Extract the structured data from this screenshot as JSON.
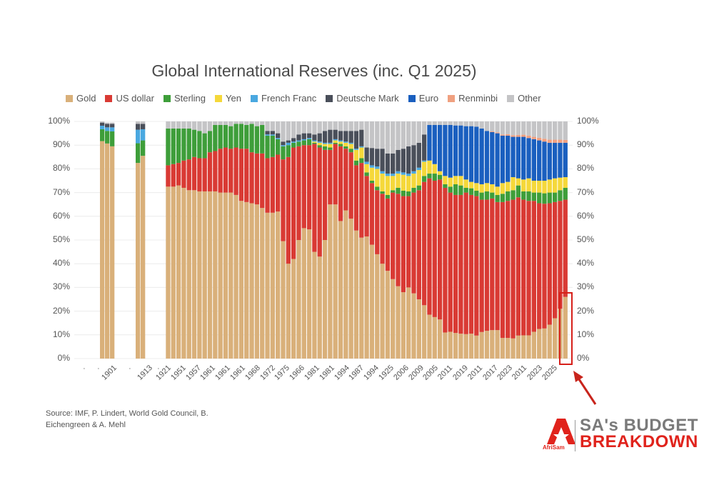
{
  "chart_data": {
    "type": "bar",
    "stacked": true,
    "normalized": true,
    "title": "Global International Reserves (inc. Q1 2025)",
    "legend_position": "top",
    "grid": true,
    "ylim": [
      0,
      100
    ],
    "y_ticks": [
      "0%",
      "10%",
      "20%",
      "30%",
      "40%",
      "50%",
      "60%",
      "70%",
      "80%",
      "90%",
      "100%"
    ],
    "x_tick_labels": [
      ".",
      ".",
      "1901",
      ".",
      "1913",
      ".",
      "1921",
      "1951",
      "1957",
      "1961",
      "1961",
      "1961",
      "1968",
      "1972",
      "1975",
      "1966",
      "1981",
      "1981",
      "1994",
      "1987",
      "1994",
      "1925",
      "2006",
      "2009",
      "2005",
      "2011",
      "2019",
      "2011",
      "2017",
      "2023",
      "2011",
      "2023",
      "2025"
    ],
    "highlight": "last bar (red box with arrow)",
    "series": [
      {
        "name": "Gold",
        "color": "#d9b07a",
        "values": [
          91.7,
          90.7,
          89.5,
          82.5,
          85.5,
          72.5,
          72.5,
          73,
          72,
          71,
          71,
          70.5,
          70.5,
          70.5,
          70.5,
          70,
          70,
          70,
          69,
          66.5,
          66,
          65.5,
          65,
          63.5,
          61.5,
          61.5,
          62,
          49.5,
          40,
          42,
          50,
          55,
          54.5,
          45,
          43,
          50,
          65,
          65,
          58,
          62.5,
          59,
          54,
          51,
          51.5,
          48,
          44,
          40,
          37,
          33.5,
          30.5,
          28,
          30,
          27.5,
          25,
          22.5,
          18.5,
          17.5,
          16.5,
          11,
          11.3,
          10.8,
          10.5,
          10.3,
          10.5,
          9.7,
          11.2,
          11.7,
          12,
          12,
          8.7,
          8.7,
          8.5,
          9.7,
          9.8,
          9.8,
          11.3,
          12.5,
          12.7,
          14.3,
          17,
          21,
          26
        ]
      },
      {
        "name": "US dollar",
        "color": "#d93a34",
        "values": [
          0,
          0,
          0,
          0,
          0,
          9,
          9.5,
          9.5,
          11.5,
          13,
          14,
          14,
          14,
          16.5,
          17,
          18.5,
          19,
          18.5,
          20,
          22,
          22.5,
          21.5,
          21.5,
          23,
          23,
          23.5,
          24,
          34.5,
          45,
          47,
          39.5,
          35,
          35.5,
          45.5,
          46,
          38,
          23,
          25.5,
          31.5,
          26,
          28,
          27.5,
          31.5,
          25.5,
          26,
          27,
          29.5,
          30.5,
          36.5,
          39,
          40.5,
          38.5,
          42.5,
          46,
          52,
          57.5,
          57.5,
          59,
          61,
          58.7,
          58.2,
          58.5,
          59.7,
          58.5,
          58.8,
          55.8,
          55.3,
          55.5,
          54,
          57.3,
          57.8,
          58.5,
          58.3,
          57.2,
          56.7,
          55.2,
          53,
          52.6,
          51.2,
          49,
          45.5,
          41
        ]
      },
      {
        "name": "Sterling",
        "color": "#3e9e3a",
        "values": [
          5,
          5.3,
          6.3,
          8.3,
          6.5,
          15.5,
          15,
          14.5,
          13.5,
          13,
          11.5,
          11.5,
          10.5,
          9,
          11,
          10,
          9.5,
          9.5,
          10,
          10.5,
          10,
          12,
          11.5,
          12,
          9.5,
          9,
          6.5,
          5.5,
          5,
          2,
          2,
          2,
          2.5,
          0.5,
          1,
          1.5,
          1,
          0.5,
          1,
          1,
          1.5,
          2,
          2,
          1.5,
          1,
          1.5,
          1,
          1.5,
          1,
          2.5,
          2.3,
          2,
          2,
          2,
          2.5,
          2,
          3,
          2,
          1.5,
          2.5,
          4.5,
          4,
          2,
          2.8,
          2.3,
          3,
          3.5,
          2.5,
          3,
          3.5,
          4,
          4,
          5,
          3.5,
          4,
          3.5,
          4.5,
          4.4,
          4.5,
          4,
          4.5,
          5
        ]
      },
      {
        "name": "Yen",
        "color": "#f5d83a",
        "values": [
          0,
          0,
          0,
          0,
          0,
          0,
          0,
          0,
          0,
          0,
          0,
          0,
          0,
          0,
          0,
          0,
          0,
          0,
          0,
          0,
          0,
          0,
          0,
          0,
          0,
          0,
          0,
          0,
          0,
          0,
          0,
          0,
          0,
          0.5,
          1,
          1,
          1.5,
          1,
          1,
          1.5,
          2,
          4.5,
          4.5,
          3.5,
          5.5,
          7.5,
          7.5,
          8,
          6,
          6,
          6.7,
          6.5,
          6,
          6.5,
          6,
          5.5,
          4,
          1.5,
          3.5,
          3.8,
          3.5,
          4,
          3.5,
          2.7,
          3.2,
          3.5,
          3.5,
          3.5,
          3.5,
          4.5,
          4,
          5.5,
          3,
          5,
          5.5,
          5,
          5,
          5.3,
          5.5,
          6,
          5.3,
          4.5
        ]
      },
      {
        "name": "French Franc",
        "color": "#4aa8e0",
        "values": [
          1.5,
          1.5,
          1.7,
          5.7,
          4.7,
          0,
          0,
          0,
          0,
          0,
          0,
          0,
          0,
          0,
          0,
          0,
          0,
          0,
          0,
          0,
          0,
          0,
          0,
          0,
          0.5,
          0.5,
          0.5,
          0.5,
          1,
          0.5,
          0.5,
          0.5,
          0.5,
          0.5,
          0.5,
          0.5,
          0.5,
          0.5,
          0.5,
          0.5,
          0.5,
          0.5,
          0.5,
          1,
          1,
          1,
          1,
          1,
          1,
          1,
          1,
          1,
          1,
          1,
          0.5,
          0,
          0,
          0,
          0,
          0,
          0,
          0,
          0,
          0,
          0,
          0,
          0,
          0,
          0,
          0,
          0,
          0,
          0,
          0,
          0,
          0,
          0,
          0,
          0,
          0,
          0,
          0
        ]
      },
      {
        "name": "Deutsche Mark",
        "color": "#4a4f5a",
        "values": [
          1.3,
          1.5,
          1.5,
          2.5,
          2.3,
          0,
          0,
          0,
          0,
          0,
          0,
          0,
          0,
          0,
          0,
          0,
          0,
          0,
          0,
          0,
          0,
          0,
          0,
          0,
          1.5,
          1.5,
          2,
          1.5,
          1,
          1.5,
          2.5,
          2.5,
          2,
          2.5,
          3.5,
          5,
          5.5,
          4,
          4,
          4.5,
          5,
          7.5,
          7,
          6,
          7.3,
          7.5,
          9.5,
          8.5,
          8.5,
          9,
          10,
          11.5,
          11,
          10.5,
          11,
          0,
          0,
          0,
          0,
          0,
          0,
          0,
          0,
          0,
          0,
          0,
          0,
          0,
          0,
          0,
          0,
          0,
          0,
          0,
          0,
          0,
          0,
          0,
          0,
          0,
          0,
          0
        ]
      },
      {
        "name": "Euro",
        "color": "#1a5fbf",
        "values": [
          0,
          0,
          0,
          0,
          0,
          0,
          0,
          0,
          0,
          0,
          0,
          0,
          0,
          0,
          0,
          0,
          0,
          0,
          0,
          0,
          0,
          0,
          0,
          0,
          0,
          0,
          0,
          0,
          0,
          0,
          0,
          0,
          0,
          0,
          0,
          0,
          0,
          0,
          0,
          0,
          0,
          0,
          0,
          0,
          0,
          0,
          0,
          0,
          0,
          0,
          0,
          0,
          0,
          0,
          0,
          15,
          16.5,
          19.5,
          21.5,
          22.2,
          21.3,
          21.3,
          22.5,
          23.5,
          23.8,
          23.5,
          22,
          22,
          22.5,
          20,
          19.5,
          17,
          17.5,
          18,
          17,
          17.5,
          17,
          16.5,
          15.5,
          15,
          14.7,
          14.5
        ]
      },
      {
        "name": "Renminbi",
        "color": "#f0a080",
        "values": [
          0,
          0,
          0,
          0,
          0,
          0,
          0,
          0,
          0,
          0,
          0,
          0,
          0,
          0,
          0,
          0,
          0,
          0,
          0,
          0,
          0,
          0,
          0,
          0,
          0,
          0,
          0,
          0,
          0,
          0,
          0,
          0,
          0,
          0,
          0,
          0,
          0,
          0,
          0,
          0,
          0,
          0,
          0,
          0,
          0,
          0,
          0,
          0,
          0,
          0,
          0,
          0,
          0,
          0,
          0,
          0,
          0,
          0,
          0,
          0,
          0,
          0,
          0,
          0,
          0,
          0,
          0,
          0.3,
          0.4,
          0.5,
          0.6,
          0.7,
          0.8,
          0.9,
          1,
          1,
          1.1,
          1.2,
          1.3,
          1.3,
          1.3,
          1.2
        ]
      },
      {
        "name": "Other",
        "color": "#c4c4c6",
        "values": [
          0.5,
          0.5,
          0.5,
          1,
          1,
          3,
          3,
          3,
          3,
          3,
          3.5,
          4,
          5,
          4,
          1.5,
          1.5,
          1.5,
          2,
          1,
          1,
          1.5,
          1,
          2,
          1.5,
          4,
          4,
          5,
          8.5,
          8,
          7,
          5.5,
          5,
          5,
          5.5,
          5,
          4,
          3.5,
          3.5,
          4,
          4,
          4,
          4,
          3.5,
          11,
          11.2,
          11.5,
          11.5,
          13.5,
          13.5,
          12,
          11.5,
          10.5,
          10,
          9,
          5.5,
          1.5,
          1.5,
          1.5,
          1.5,
          1.5,
          1.7,
          1.7,
          2,
          2,
          2.2,
          3,
          4,
          4.2,
          4.6,
          5.5,
          5.4,
          5.8,
          5.7,
          5.6,
          6,
          6.5,
          6.9,
          7.3,
          7.7,
          7.7,
          7.7,
          7.8
        ]
      }
    ]
  },
  "source": "Source: IMF, P. Lindert, World Gold Council, B. Eichengreen & A. Mehl",
  "logo": {
    "line1": "SA's BUDGET",
    "line2": "BREAKDOWN",
    "brand": "AfriSam"
  }
}
